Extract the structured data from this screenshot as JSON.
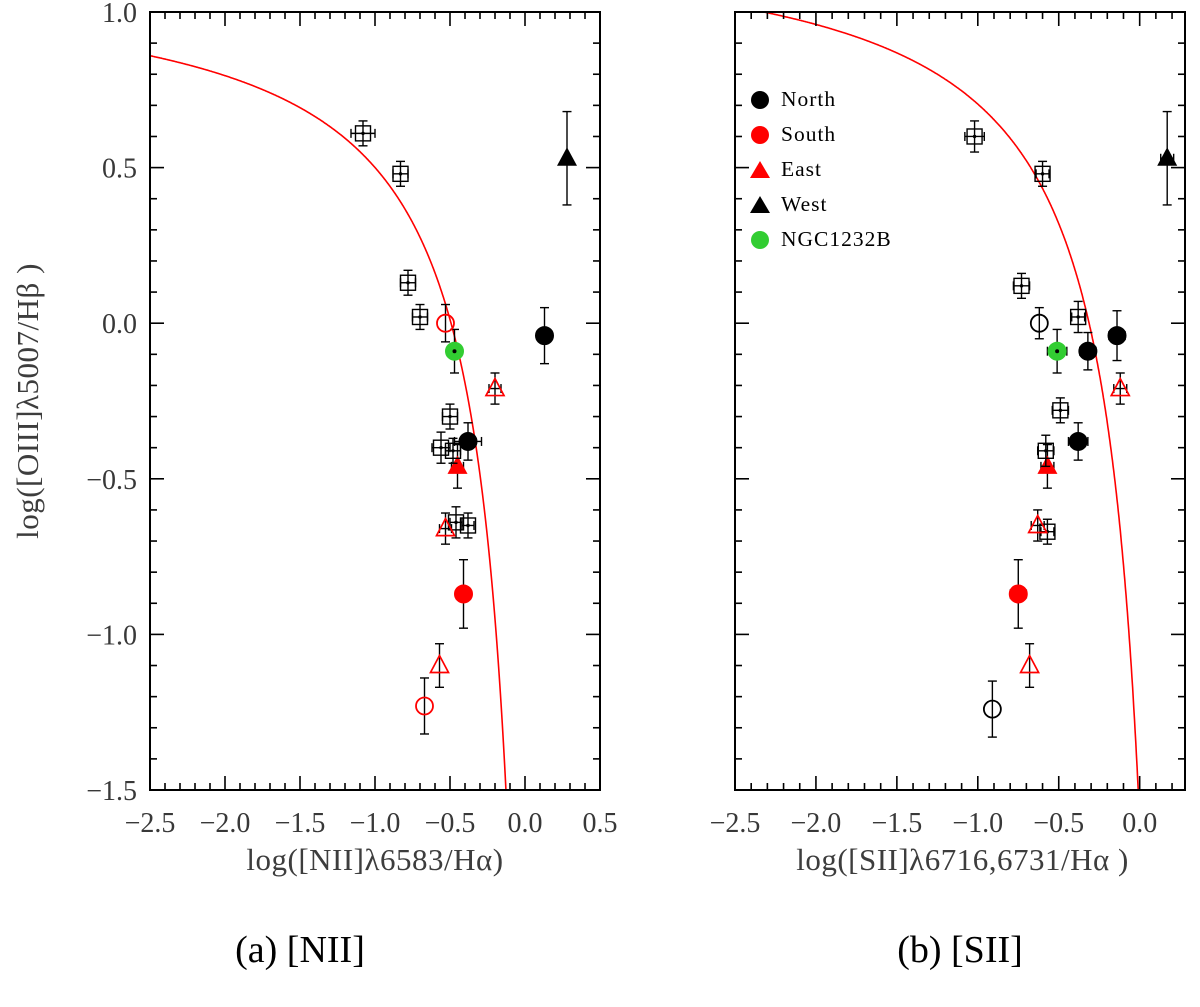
{
  "figure": {
    "background": "#ffffff",
    "y_axis_title": "log([OIII]λ5007/Hβ )"
  },
  "legend": {
    "position": "top-left of panel (b)",
    "items": [
      {
        "label": "North",
        "marker": "circle",
        "color": "#000000"
      },
      {
        "label": "South",
        "marker": "circle",
        "color": "#ff0000"
      },
      {
        "label": "East",
        "marker": "triangle",
        "color": "#ff0000"
      },
      {
        "label": "West",
        "marker": "triangle",
        "color": "#000000"
      },
      {
        "label": "NGC1232B",
        "marker": "circle",
        "color": "#32cd32"
      }
    ]
  },
  "chart_data": [
    {
      "type": "scatter",
      "panel": "a",
      "caption": "(a) [NII]",
      "xlabel": "log([NII]λ6583/Hα)",
      "ylabel": "log([OIII]λ5007/Hβ )",
      "xlim": [
        -2.5,
        0.5
      ],
      "ylim": [
        -1.5,
        1.0
      ],
      "grid": false,
      "xtick_values": [
        -2.5,
        -2.0,
        -1.5,
        -1.0,
        -0.5,
        0.0,
        0.5
      ],
      "xtick_labels": [
        "−2.5",
        "−2.0",
        "−1.5",
        "−1.0",
        "−0.5",
        "0.0",
        "0.5"
      ],
      "ytick_values": [
        1.0,
        0.5,
        0.0,
        -0.5,
        -1.0,
        -1.5
      ],
      "ytick_labels": [
        "1.0",
        "0.5",
        "0.0",
        "−0.5",
        "−1.0",
        "−1.5"
      ],
      "minor_tick_step": 0.1,
      "demarcation_curve": {
        "formula": "y = a/(x-b)+c",
        "a": 0.73,
        "b": 0.15,
        "c": 1.135,
        "color": "#ff0000"
      },
      "series": [
        {
          "name": "North",
          "marker": "filled-circle",
          "color": "#000000",
          "points": [
            {
              "x": 0.13,
              "y": -0.04,
              "ex": 0.04,
              "ey": 0.09
            },
            {
              "x": -0.38,
              "y": -0.38,
              "ex": 0.09,
              "ey": 0.06
            }
          ]
        },
        {
          "name": "South",
          "marker": "filled-circle",
          "color": "#ff0000",
          "points": [
            {
              "x": -0.41,
              "y": -0.87,
              "ex": 0.05,
              "ey": 0.11
            }
          ]
        },
        {
          "name": "East",
          "marker": "filled-triangle",
          "color": "#ff0000",
          "points": [
            {
              "x": -0.45,
              "y": -0.46,
              "ex": 0.04,
              "ey": 0.07
            }
          ]
        },
        {
          "name": "West",
          "marker": "filled-triangle",
          "color": "#000000",
          "points": [
            {
              "x": 0.28,
              "y": 0.53,
              "ex": 0,
              "ey": 0.15
            }
          ]
        },
        {
          "name": "NGC1232B",
          "marker": "filled-circle",
          "color": "#32cd32",
          "center_dot": true,
          "points": [
            {
              "x": -0.47,
              "y": -0.09,
              "ex": 0.04,
              "ey": 0.07
            }
          ]
        },
        {
          "name": "comparison-open-squares",
          "marker": "open-square",
          "color": "#000000",
          "points": [
            {
              "x": -1.08,
              "y": 0.61,
              "ex": 0.08,
              "ey": 0.04
            },
            {
              "x": -0.83,
              "y": 0.48,
              "ex": 0.05,
              "ey": 0.04
            },
            {
              "x": -0.78,
              "y": 0.13,
              "ex": 0.05,
              "ey": 0.04
            },
            {
              "x": -0.7,
              "y": 0.02,
              "ex": 0.05,
              "ey": 0.04
            },
            {
              "x": -0.5,
              "y": -0.3,
              "ex": 0.05,
              "ey": 0.04
            },
            {
              "x": -0.56,
              "y": -0.4,
              "ex": 0.06,
              "ey": 0.05
            },
            {
              "x": -0.48,
              "y": -0.41,
              "ex": 0.05,
              "ey": 0.04
            },
            {
              "x": -0.46,
              "y": -0.64,
              "ex": 0.04,
              "ey": 0.05
            },
            {
              "x": -0.38,
              "y": -0.65,
              "ex": 0.04,
              "ey": 0.04
            }
          ]
        },
        {
          "name": "comparison-open-circles",
          "marker": "open-circle",
          "color": "#ff0000",
          "points": [
            {
              "x": -0.53,
              "y": 0.0,
              "ex": 0,
              "ey": 0.06
            },
            {
              "x": -0.67,
              "y": -1.23,
              "ex": 0,
              "ey": 0.09
            }
          ]
        },
        {
          "name": "comparison-open-triangles",
          "marker": "open-triangle",
          "color": "#ff0000",
          "points": [
            {
              "x": -0.2,
              "y": -0.21,
              "ex": 0.04,
              "ey": 0.05
            },
            {
              "x": -0.53,
              "y": -0.66,
              "ex": 0.04,
              "ey": 0.05
            },
            {
              "x": -0.57,
              "y": -1.1,
              "ex": 0,
              "ey": 0.07
            }
          ]
        }
      ]
    },
    {
      "type": "scatter",
      "panel": "b",
      "caption": "(b) [SII]",
      "xlabel": "log([SII]λ6716,6731/Hα )",
      "ylabel": "log([OIII]λ5007/Hβ )",
      "xlim": [
        -2.5,
        0.28
      ],
      "ylim": [
        -1.5,
        1.0
      ],
      "grid": false,
      "xtick_values": [
        -2.5,
        -2.0,
        -1.5,
        -1.0,
        -0.5,
        0.0
      ],
      "xtick_labels": [
        "−2.5",
        "−2.0",
        "−1.5",
        "−1.0",
        "−0.5",
        "0.0"
      ],
      "ytick_values": [
        1.0,
        0.5,
        0.0,
        -0.5,
        -1.0,
        -1.5
      ],
      "ytick_labels": [],
      "minor_tick_step": 0.1,
      "demarcation_curve": {
        "formula": "y = a/(x-b)+c",
        "a": 0.72,
        "b": 0.25,
        "c": 1.28,
        "color": "#ff0000"
      },
      "series": [
        {
          "name": "North",
          "marker": "filled-circle",
          "color": "#000000",
          "points": [
            {
              "x": -0.14,
              "y": -0.04,
              "ex": 0.05,
              "ey": 0.08
            },
            {
              "x": -0.32,
              "y": -0.09,
              "ex": 0.05,
              "ey": 0.06
            },
            {
              "x": -0.38,
              "y": -0.38,
              "ex": 0.06,
              "ey": 0.06
            }
          ]
        },
        {
          "name": "South",
          "marker": "filled-circle",
          "color": "#ff0000",
          "points": [
            {
              "x": -0.75,
              "y": -0.87,
              "ex": 0.05,
              "ey": 0.11
            }
          ]
        },
        {
          "name": "East",
          "marker": "filled-triangle",
          "color": "#ff0000",
          "points": [
            {
              "x": -0.57,
              "y": -0.46,
              "ex": 0.04,
              "ey": 0.07
            }
          ]
        },
        {
          "name": "West",
          "marker": "filled-triangle",
          "color": "#000000",
          "points": [
            {
              "x": 0.17,
              "y": 0.53,
              "ex": 0.04,
              "ey": 0.15
            }
          ]
        },
        {
          "name": "NGC1232B",
          "marker": "filled-circle",
          "color": "#32cd32",
          "center_dot": true,
          "points": [
            {
              "x": -0.51,
              "y": -0.09,
              "ex": 0.06,
              "ey": 0.07
            }
          ]
        },
        {
          "name": "comparison-open-squares",
          "marker": "open-square",
          "color": "#000000",
          "points": [
            {
              "x": -1.02,
              "y": 0.6,
              "ex": 0.06,
              "ey": 0.05
            },
            {
              "x": -0.6,
              "y": 0.48,
              "ex": 0.04,
              "ey": 0.04
            },
            {
              "x": -0.73,
              "y": 0.12,
              "ex": 0.05,
              "ey": 0.04
            },
            {
              "x": -0.38,
              "y": 0.02,
              "ex": 0.04,
              "ey": 0.05
            },
            {
              "x": -0.49,
              "y": -0.28,
              "ex": 0.05,
              "ey": 0.04
            },
            {
              "x": -0.58,
              "y": -0.41,
              "ex": 0.05,
              "ey": 0.05
            },
            {
              "x": -0.57,
              "y": -0.67,
              "ex": 0.04,
              "ey": 0.04
            }
          ]
        },
        {
          "name": "comparison-open-circles",
          "marker": "open-circle",
          "color": "#000000",
          "points": [
            {
              "x": -0.62,
              "y": 0.0,
              "ex": 0,
              "ey": 0.05
            },
            {
              "x": -0.91,
              "y": -1.24,
              "ex": 0,
              "ey": 0.09
            }
          ]
        },
        {
          "name": "comparison-open-triangles",
          "marker": "open-triangle",
          "color": "#ff0000",
          "points": [
            {
              "x": -0.12,
              "y": -0.21,
              "ex": 0.04,
              "ey": 0.05
            },
            {
              "x": -0.63,
              "y": -0.65,
              "ex": 0.04,
              "ey": 0.05
            },
            {
              "x": -0.68,
              "y": -1.1,
              "ex": 0,
              "ey": 0.07
            }
          ]
        }
      ]
    }
  ]
}
